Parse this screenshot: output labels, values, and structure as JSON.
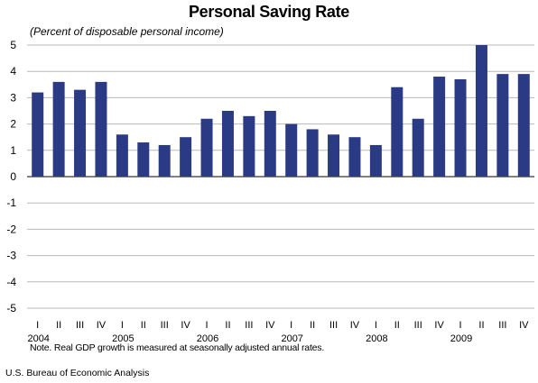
{
  "chart_data": {
    "type": "bar",
    "title": "Personal Saving Rate",
    "subtitle": "(Percent of disposable personal income)",
    "note": "Note.  Real GDP growth is measured at seasonally adjusted annual rates.",
    "source": "U.S. Bureau of Economic Analysis",
    "ylim": [
      -5,
      5
    ],
    "yticks": [
      5,
      4,
      3,
      2,
      1,
      0,
      -1,
      -2,
      -3,
      -4,
      -5
    ],
    "grid": true,
    "bar_color": "#2b3a85",
    "categories": [
      "I",
      "II",
      "III",
      "IV",
      "I",
      "II",
      "III",
      "IV",
      "I",
      "II",
      "III",
      "IV",
      "I",
      "II",
      "III",
      "IV",
      "I",
      "II",
      "III",
      "IV",
      "I",
      "II",
      "III",
      "IV"
    ],
    "years": [
      "2004",
      "2005",
      "2006",
      "2007",
      "2008",
      "2009"
    ],
    "values": [
      3.2,
      3.6,
      3.3,
      3.6,
      1.6,
      1.3,
      1.2,
      1.5,
      2.2,
      2.5,
      2.3,
      2.5,
      2.0,
      1.8,
      1.6,
      1.5,
      1.2,
      3.4,
      2.2,
      3.8,
      3.7,
      5.0,
      3.9,
      3.9
    ]
  }
}
